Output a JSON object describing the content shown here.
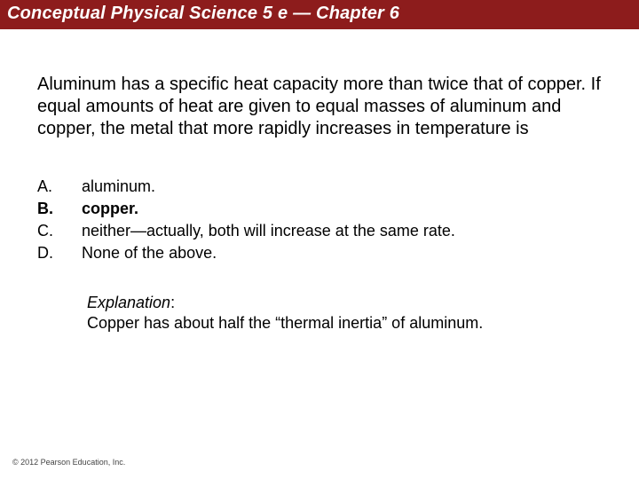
{
  "header": {
    "title": "Conceptual Physical Science 5 e — Chapter 6",
    "background_color": "#8d1c1c",
    "text_color": "#ffffff"
  },
  "question": {
    "text": "Aluminum has a specific heat capacity more than twice that of copper. If equal amounts of heat are given to equal masses of aluminum and copper, the metal that more rapidly increases in temperature is",
    "fontsize": 20
  },
  "choices": [
    {
      "label": "A.",
      "text": "aluminum.",
      "bold": false
    },
    {
      "label": "B.",
      "text": "copper.",
      "bold": true
    },
    {
      "label": "C.",
      "text": "neither—actually, both will increase at the same rate.",
      "bold": false
    },
    {
      "label": "D.",
      "text": "None of the above.",
      "bold": false
    }
  ],
  "explanation": {
    "label": "Explanation",
    "text": "Copper has about half the “thermal inertia” of aluminum."
  },
  "copyright": "© 2012 Pearson Education, Inc."
}
